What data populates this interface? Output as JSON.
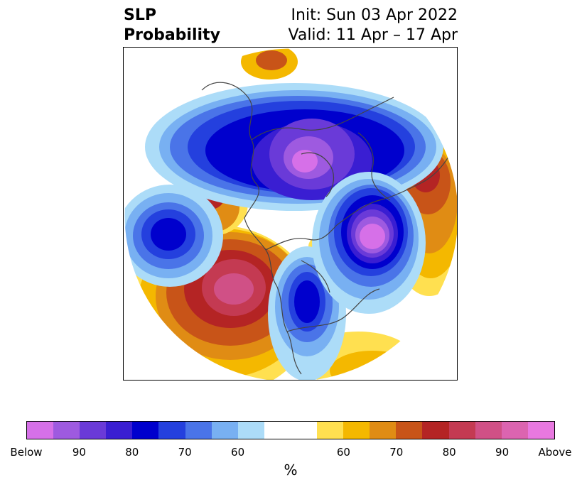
{
  "title": {
    "variable_line1": "SLP",
    "variable_line2": "Probability",
    "init": "Init: Sun 03 Apr 2022",
    "valid": "Valid: 11 Apr – 17 Apr"
  },
  "map": {
    "projection": "north-polar-stereographic",
    "field": "sea-level-pressure-probability"
  },
  "colorbar": {
    "colors": [
      "#d670e8",
      "#9e5ae0",
      "#6a3ad8",
      "#3a1ed2",
      "#0000cd",
      "#2440de",
      "#4a74e8",
      "#78b0f2",
      "#acdcf8",
      "#ffffff",
      "#ffffff",
      "#ffe050",
      "#f4b800",
      "#e08c14",
      "#c85418",
      "#b42424",
      "#c43a52",
      "#d05086",
      "#dc64b0",
      "#e878e0"
    ],
    "ticks": [
      "Below",
      "90",
      "80",
      "70",
      "60",
      "60",
      "70",
      "80",
      "90",
      "Above"
    ],
    "label": "%"
  }
}
